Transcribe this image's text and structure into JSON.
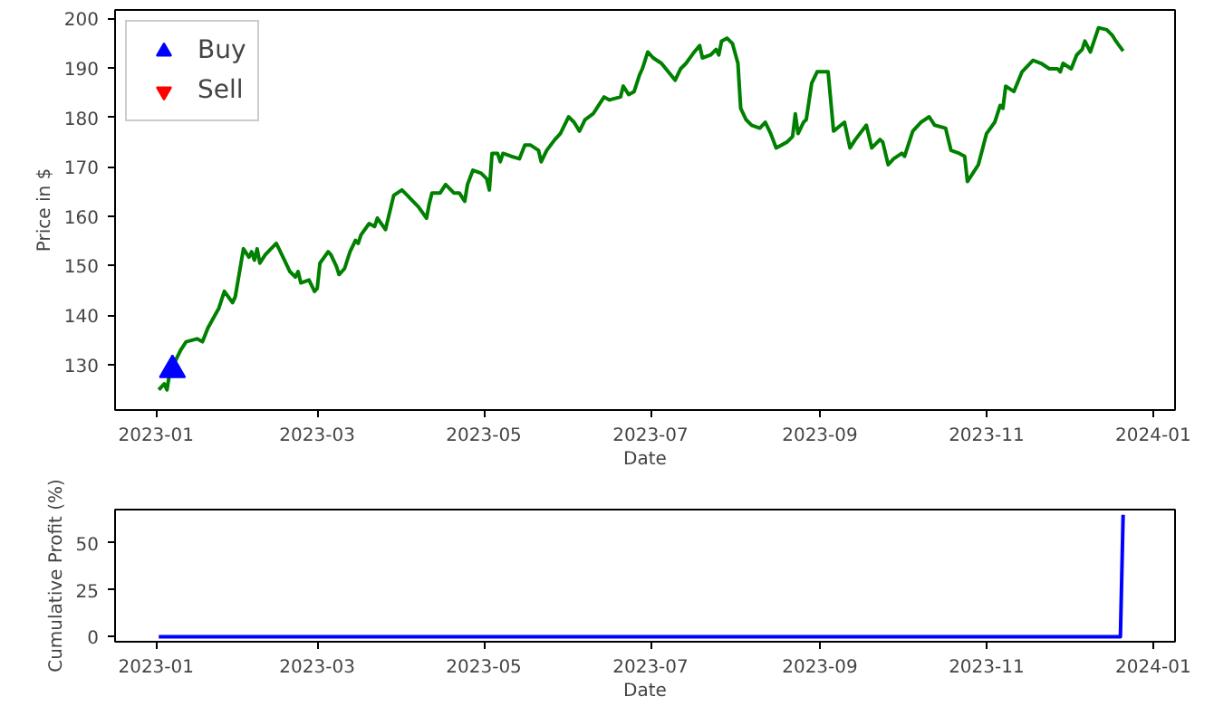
{
  "chart_data": [
    {
      "type": "line",
      "xlabel": "Date",
      "ylabel": "Price in $",
      "legend": "top left",
      "grid": false,
      "xlim": [
        "2022-12-17",
        "2024-01-09"
      ],
      "xticks": [
        "2023-01",
        "2023-03",
        "2023-05",
        "2023-07",
        "2023-09",
        "2023-11",
        "2024-01"
      ],
      "ylim": [
        120.8,
        201.7
      ],
      "yticks": [
        130,
        140,
        150,
        160,
        170,
        180,
        190,
        200
      ],
      "series": [
        {
          "color": "#008000",
          "marker": "none",
          "x": [
            "2023-01-02",
            "2023-01-04",
            "2023-01-05",
            "2023-01-06",
            "2023-01-07",
            "2023-01-10",
            "2023-01-12",
            "2023-01-16",
            "2023-01-18",
            "2023-01-20",
            "2023-01-24",
            "2023-01-26",
            "2023-01-29",
            "2023-01-30",
            "2023-02-02",
            "2023-02-04",
            "2023-02-05",
            "2023-02-06",
            "2023-02-07",
            "2023-02-08",
            "2023-02-10",
            "2023-02-14",
            "2023-02-15",
            "2023-02-17",
            "2023-02-19",
            "2023-02-21",
            "2023-02-22",
            "2023-02-23",
            "2023-02-26",
            "2023-02-28",
            "2023-03-01",
            "2023-03-02",
            "2023-03-05",
            "2023-03-06",
            "2023-03-08",
            "2023-03-09",
            "2023-03-11",
            "2023-03-13",
            "2023-03-15",
            "2023-03-16",
            "2023-03-17",
            "2023-03-20",
            "2023-03-22",
            "2023-03-23",
            "2023-03-26",
            "2023-03-29",
            "2023-04-01",
            "2023-04-03",
            "2023-04-04",
            "2023-04-07",
            "2023-04-10",
            "2023-04-11",
            "2023-04-12",
            "2023-04-15",
            "2023-04-17",
            "2023-04-20",
            "2023-04-22",
            "2023-04-24",
            "2023-04-25",
            "2023-04-27",
            "2023-04-30",
            "2023-05-02",
            "2023-05-03",
            "2023-05-04",
            "2023-05-06",
            "2023-05-07",
            "2023-05-08",
            "2023-05-11",
            "2023-05-14",
            "2023-05-16",
            "2023-05-18",
            "2023-05-21",
            "2023-05-22",
            "2023-05-24",
            "2023-05-27",
            "2023-05-29",
            "2023-06-01",
            "2023-06-03",
            "2023-06-05",
            "2023-06-07",
            "2023-06-10",
            "2023-06-12",
            "2023-06-14",
            "2023-06-16",
            "2023-06-20",
            "2023-06-21",
            "2023-06-23",
            "2023-06-25",
            "2023-06-27",
            "2023-06-28",
            "2023-06-30",
            "2023-07-02",
            "2023-07-05",
            "2023-07-10",
            "2023-07-12",
            "2023-07-14",
            "2023-07-17",
            "2023-07-19",
            "2023-07-20",
            "2023-07-23",
            "2023-07-25",
            "2023-07-26",
            "2023-07-27",
            "2023-07-29",
            "2023-07-31",
            "2023-08-02",
            "2023-08-03",
            "2023-08-05",
            "2023-08-07",
            "2023-08-10",
            "2023-08-12",
            "2023-08-14",
            "2023-08-16",
            "2023-08-20",
            "2023-08-22",
            "2023-08-23",
            "2023-08-24",
            "2023-08-26",
            "2023-08-27",
            "2023-08-29",
            "2023-08-31",
            "2023-09-04",
            "2023-09-06",
            "2023-09-10",
            "2023-09-12",
            "2023-09-14",
            "2023-09-18",
            "2023-09-20",
            "2023-09-23",
            "2023-09-24",
            "2023-09-26",
            "2023-09-28",
            "2023-10-01",
            "2023-10-02",
            "2023-10-05",
            "2023-10-08",
            "2023-10-11",
            "2023-10-13",
            "2023-10-17",
            "2023-10-19",
            "2023-10-22",
            "2023-10-24",
            "2023-10-25",
            "2023-10-27",
            "2023-10-29",
            "2023-11-01",
            "2023-11-04",
            "2023-11-06",
            "2023-11-07",
            "2023-11-08",
            "2023-11-11",
            "2023-11-14",
            "2023-11-18",
            "2023-11-21",
            "2023-11-24",
            "2023-11-27",
            "2023-11-28",
            "2023-11-29",
            "2023-12-02",
            "2023-12-04",
            "2023-12-06",
            "2023-12-07",
            "2023-12-09",
            "2023-12-12",
            "2023-12-15",
            "2023-12-17",
            "2023-12-18",
            "2023-12-19",
            "2023-12-21"
          ],
          "values": [
            124.9,
            126.1,
            124.9,
            128.3,
            129.5,
            132.9,
            134.6,
            135.2,
            134.6,
            137.4,
            141.4,
            144.8,
            142.5,
            143.7,
            153.4,
            151.7,
            152.8,
            151.1,
            153.4,
            150.5,
            152.2,
            154.5,
            153.4,
            151.1,
            148.8,
            147.7,
            148.8,
            146.5,
            147.1,
            144.8,
            145.4,
            150.5,
            152.8,
            152.2,
            149.9,
            148.2,
            149.4,
            152.8,
            155.1,
            154.5,
            156.2,
            158.5,
            157.9,
            159.6,
            157.3,
            164.2,
            165.3,
            164.2,
            163.6,
            161.9,
            159.6,
            162.5,
            164.7,
            164.7,
            166.4,
            164.7,
            164.7,
            163.0,
            166.4,
            169.3,
            168.7,
            167.6,
            165.3,
            172.7,
            172.7,
            171.0,
            172.7,
            172.1,
            171.6,
            174.4,
            174.4,
            173.3,
            171.0,
            173.3,
            175.5,
            176.7,
            180.1,
            179.0,
            177.2,
            179.5,
            180.7,
            182.4,
            184.1,
            183.5,
            184.1,
            186.3,
            184.6,
            185.2,
            188.6,
            189.8,
            193.2,
            192.0,
            190.9,
            187.5,
            189.8,
            190.9,
            193.2,
            194.5,
            192.0,
            192.6,
            193.7,
            192.6,
            195.4,
            196.0,
            194.9,
            190.9,
            181.8,
            179.5,
            178.4,
            177.8,
            179.0,
            176.7,
            173.8,
            175.0,
            176.1,
            180.7,
            176.7,
            179.0,
            179.5,
            186.9,
            189.2,
            189.2,
            177.2,
            179.0,
            173.8,
            175.5,
            178.4,
            173.8,
            175.5,
            175.0,
            170.4,
            171.6,
            172.7,
            172.1,
            177.2,
            179.0,
            180.1,
            178.4,
            177.8,
            173.3,
            172.7,
            172.1,
            167.0,
            168.7,
            170.4,
            176.7,
            179.0,
            182.4,
            181.8,
            186.3,
            185.2,
            189.2,
            191.5,
            190.9,
            189.8,
            189.8,
            189.2,
            190.9,
            189.8,
            192.6,
            193.7,
            195.4,
            193.2,
            198.1,
            197.7,
            196.6,
            195.7,
            194.9,
            193.4
          ]
        },
        {
          "type": "scatter",
          "name": "Buy",
          "color": "#0000ff",
          "marker": "triangle",
          "x": [
            "2023-01-07"
          ],
          "values": [
            128.9
          ]
        },
        {
          "type": "scatter",
          "name": "Sell",
          "color": "#ff0000",
          "marker": "inverted_triangle"
        }
      ]
    },
    {
      "type": "line",
      "xlabel": "Date",
      "ylabel": "Cumulative Profit (%)",
      "grid": false,
      "xlim": [
        "2022-12-17",
        "2024-01-09"
      ],
      "xticks": [
        "2023-01",
        "2023-03",
        "2023-05",
        "2023-07",
        "2023-09",
        "2023-11",
        "2024-01"
      ],
      "ylim": [
        -2.7,
        67.8
      ],
      "yticks": [
        0,
        25,
        50
      ],
      "series": [
        {
          "color": "#0000ff",
          "marker": "none",
          "x": [
            "2023-01-02",
            "2023-12-20",
            "2023-12-21"
          ],
          "values": [
            0,
            0,
            65
          ]
        }
      ]
    }
  ]
}
